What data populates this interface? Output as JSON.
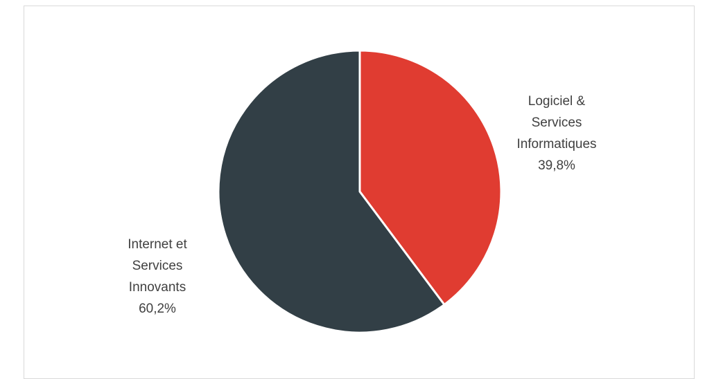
{
  "chart_data": {
    "type": "pie",
    "title": "",
    "slices": [
      {
        "label_lines": [
          "Logiciel &",
          "Services",
          "Informatiques"
        ],
        "value": 39.8,
        "value_label": "39,8%",
        "color": "#e03c31"
      },
      {
        "label_lines": [
          "Internet et",
          "Services",
          "Innovants"
        ],
        "value": 60.2,
        "value_label": "60,2%",
        "color": "#323f46"
      }
    ],
    "start_angle": "12 o'clock",
    "direction": "clockwise",
    "slice_border_color": "#ffffff",
    "legend": "none"
  }
}
